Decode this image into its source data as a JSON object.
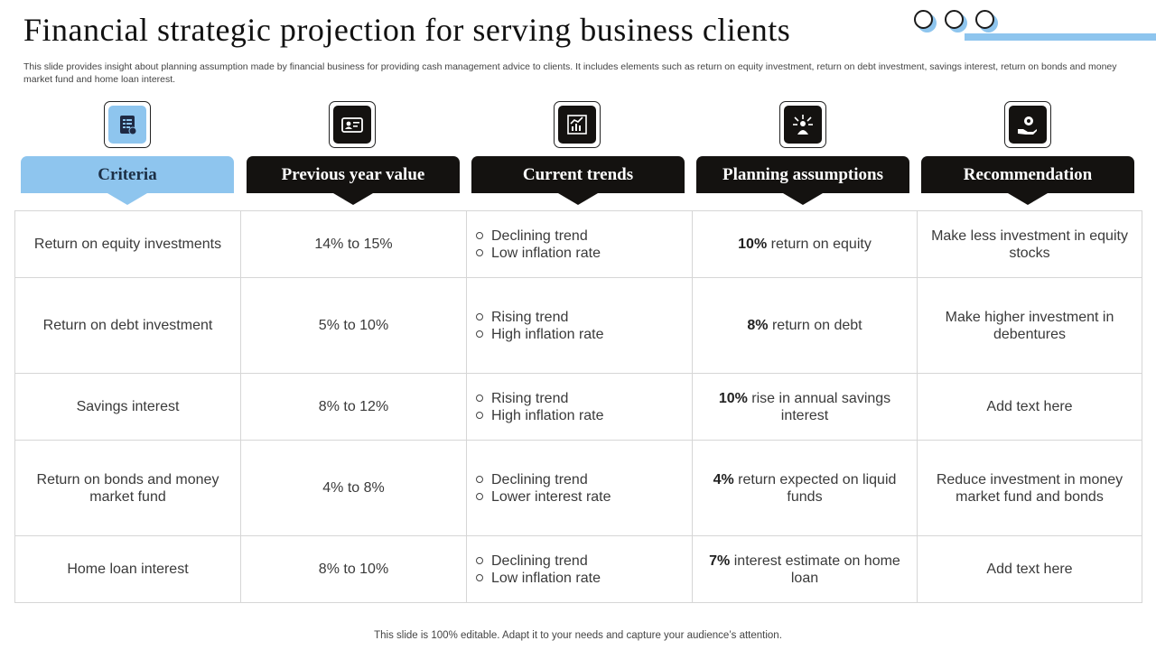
{
  "slide": {
    "title": "Financial strategic projection for serving business clients",
    "subtitle": "This slide provides insight about planning assumption made by financial business for providing cash management advice to clients. It includes elements such as return on equity investment, return on debt investment, savings interest, return on bonds and money market fund and home loan interest.",
    "footer": "This slide is 100% editable. Adapt it to your needs and capture your audience’s attention."
  },
  "colors": {
    "accent": "#8ec5ee",
    "header_dark": "#141210",
    "border": "#d6d6d6"
  },
  "columns": [
    {
      "label": "Criteria",
      "icon": "checklist-document-icon"
    },
    {
      "label": "Previous year value",
      "icon": "id-card-icon"
    },
    {
      "label": "Current trends",
      "icon": "trend-chart-icon"
    },
    {
      "label": "Planning assumptions",
      "icon": "person-ideas-icon"
    },
    {
      "label": "Recommendation",
      "icon": "hand-coin-icon"
    }
  ],
  "rows": [
    {
      "criteria": "Return on equity investments",
      "previous": "14% to 15%",
      "trends": [
        "Declining trend",
        "Low inflation rate"
      ],
      "assumption_bold": "10%",
      "assumption_text": "return on equity",
      "recommendation": "Make less investment in equity stocks"
    },
    {
      "criteria": "Return on debt investment",
      "previous": "5% to 10%",
      "trends": [
        "Rising  trend",
        "High inflation rate"
      ],
      "assumption_bold": "8%",
      "assumption_text": "return on debt",
      "recommendation": "Make higher investment in debentures"
    },
    {
      "criteria": "Savings interest",
      "previous": "8% to 12%",
      "trends": [
        "Rising  trend",
        "High inflation rate"
      ],
      "assumption_bold": "10%",
      "assumption_text": "rise in annual savings interest",
      "recommendation": "Add text here"
    },
    {
      "criteria": "Return on bonds and money market fund",
      "previous": "4% to 8%",
      "trends": [
        "Declining trend",
        "Lower interest rate"
      ],
      "assumption_bold": "4%",
      "assumption_text": "return expected on liquid funds",
      "recommendation": "Reduce investment in money market fund and bonds"
    },
    {
      "criteria": "Home loan interest",
      "previous": "8% to 10%",
      "trends": [
        "Declining trend",
        "Low inflation rate"
      ],
      "assumption_bold": "7%",
      "assumption_text": "interest estimate on home loan",
      "recommendation": "Add text here"
    }
  ]
}
